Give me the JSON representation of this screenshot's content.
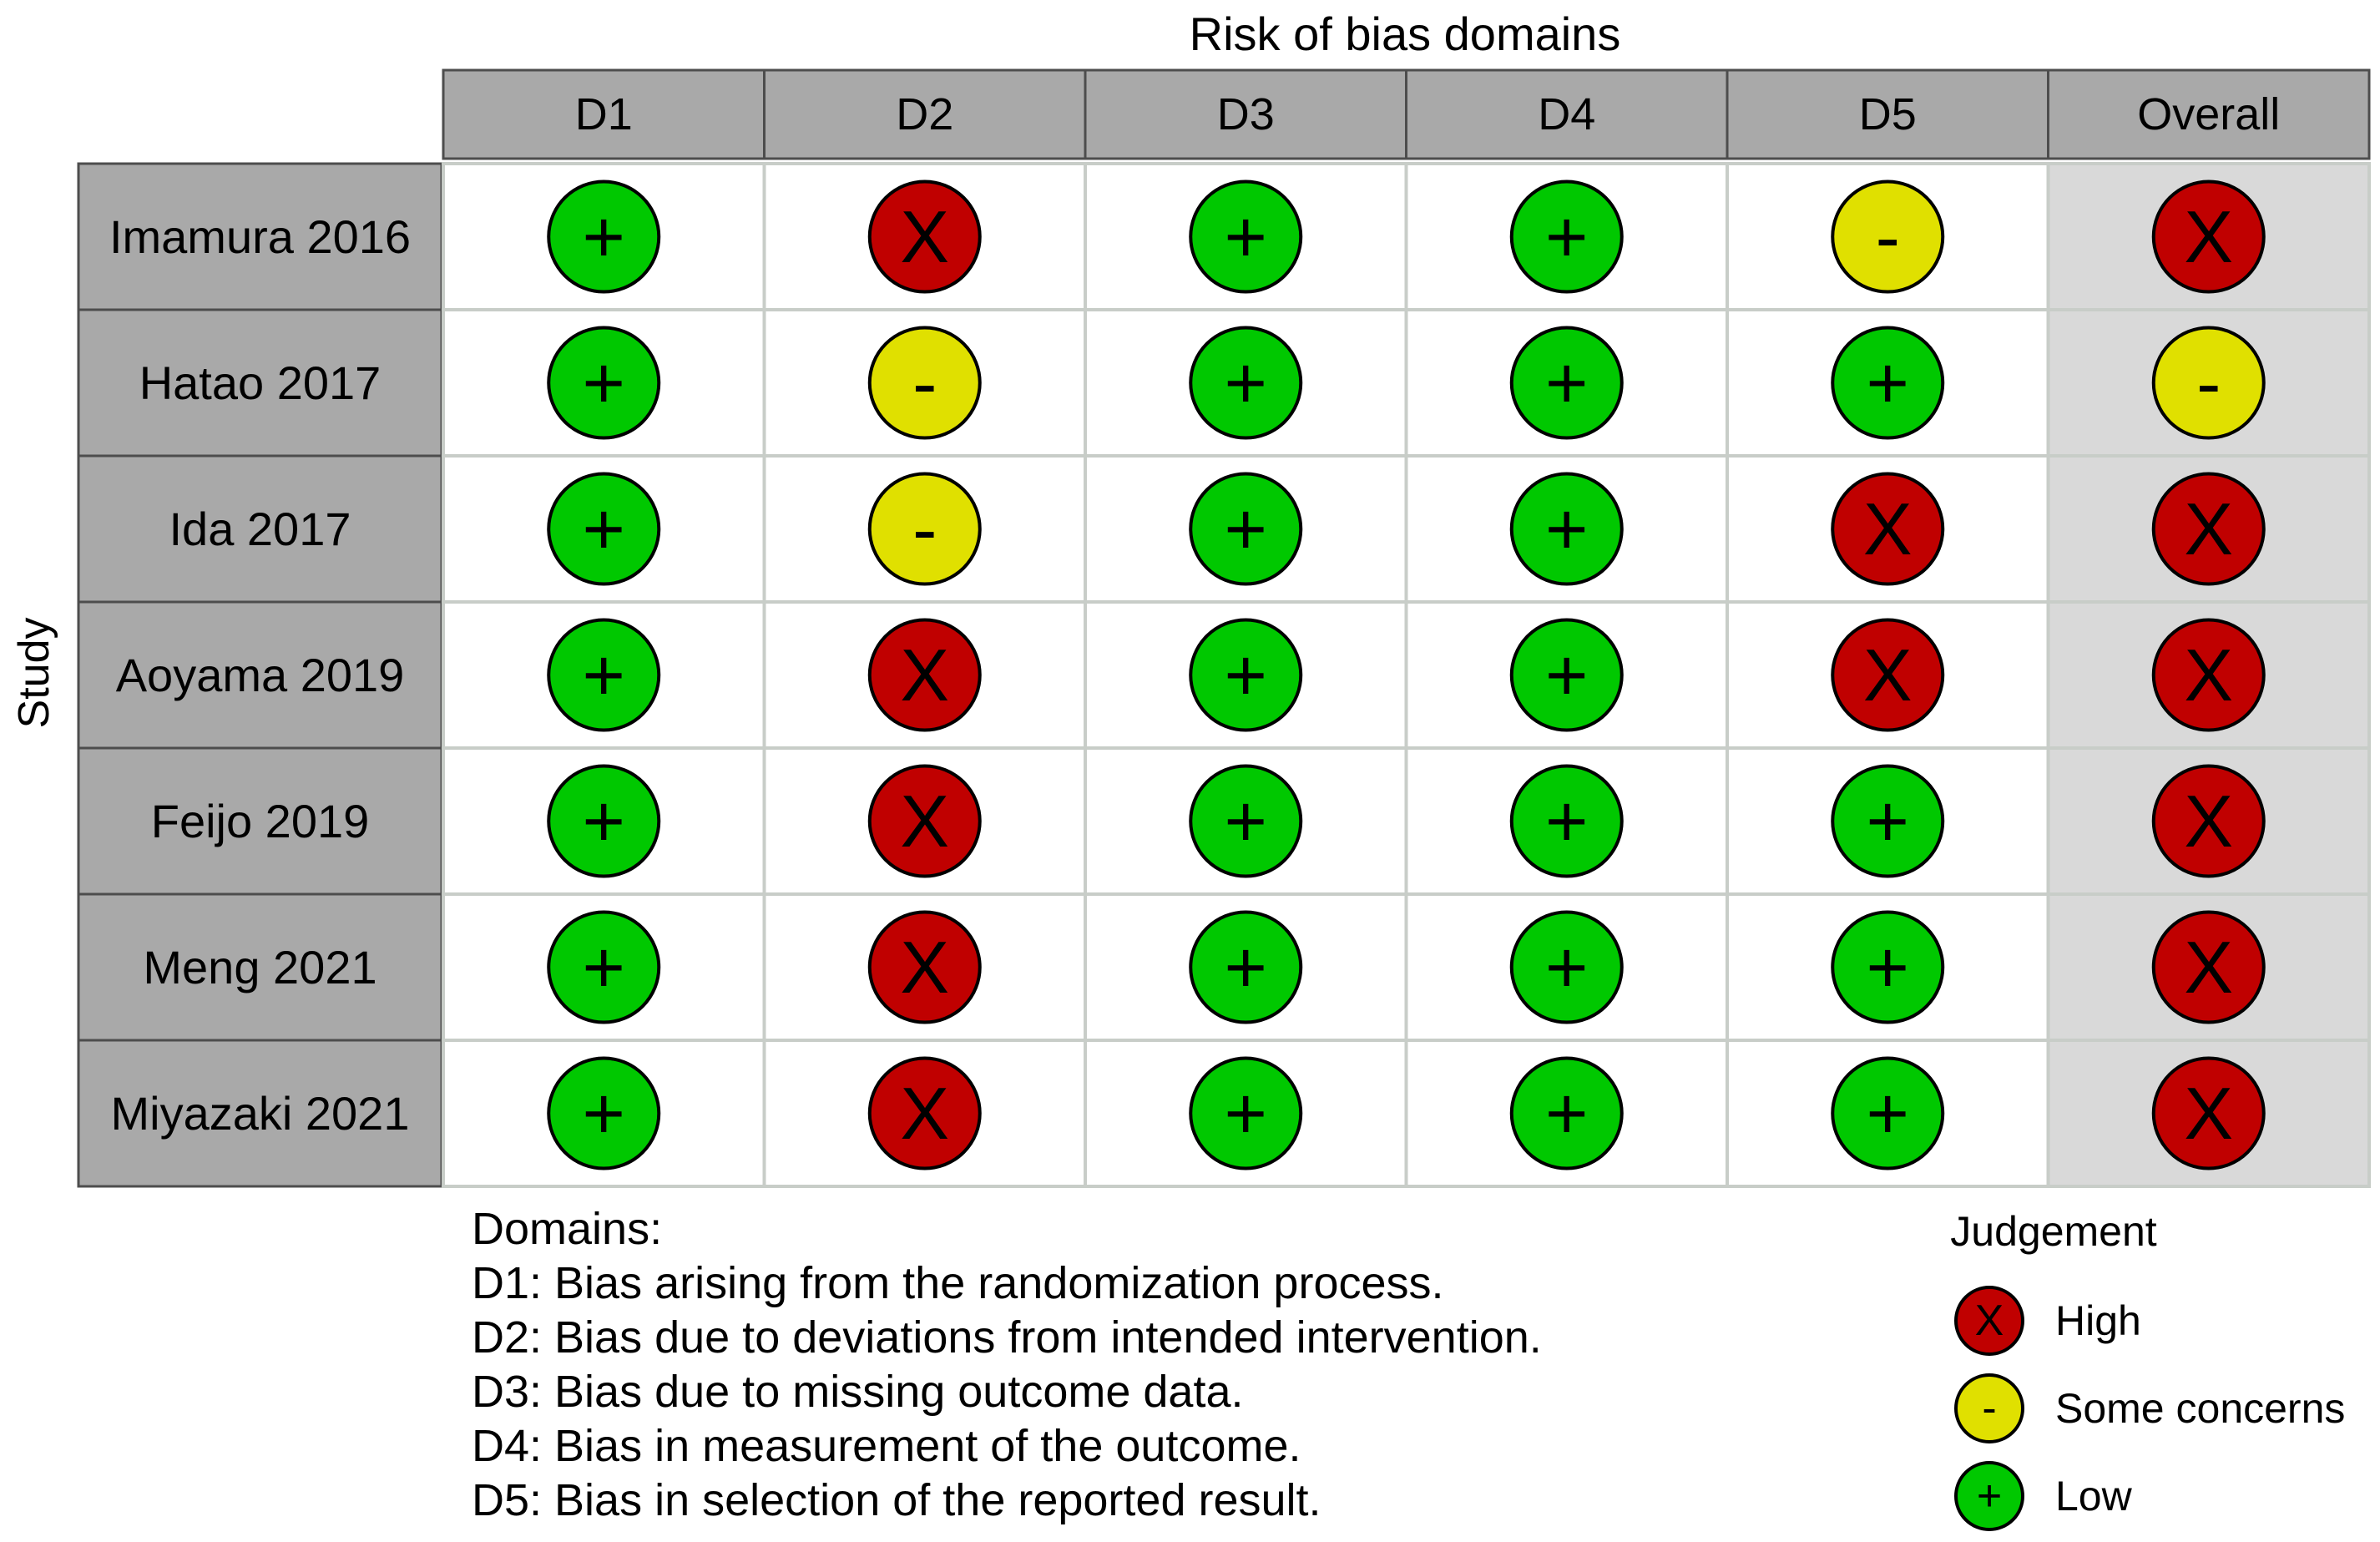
{
  "chart_data": {
    "type": "table",
    "title": "Risk of bias domains",
    "ylabel": "Study",
    "columns": [
      "D1",
      "D2",
      "D3",
      "D4",
      "D5",
      "Overall"
    ],
    "studies": [
      "Imamura 2016",
      "Hatao 2017",
      "Ida 2017",
      "Aoyama 2019",
      "Feijo 2019",
      "Meng 2021",
      "Miyazaki 2021"
    ],
    "judgements": [
      [
        "low",
        "high",
        "low",
        "low",
        "some",
        "high"
      ],
      [
        "low",
        "some",
        "low",
        "low",
        "low",
        "some"
      ],
      [
        "low",
        "some",
        "low",
        "low",
        "high",
        "high"
      ],
      [
        "low",
        "high",
        "low",
        "low",
        "high",
        "high"
      ],
      [
        "low",
        "high",
        "low",
        "low",
        "low",
        "high"
      ],
      [
        "low",
        "high",
        "low",
        "low",
        "low",
        "high"
      ],
      [
        "low",
        "high",
        "low",
        "low",
        "low",
        "high"
      ]
    ],
    "judgement_styles": {
      "high": {
        "symbol": "X",
        "color": "#c00000"
      },
      "some": {
        "symbol": "-",
        "color": "#e0e000"
      },
      "low": {
        "symbol": "+",
        "color": "#00c800"
      }
    },
    "domains_title": "Domains:",
    "domains": [
      "D1: Bias arising from the randomization process.",
      "D2: Bias due to deviations from intended intervention.",
      "D3: Bias due to missing outcome data.",
      "D4: Bias in measurement of the outcome.",
      "D5: Bias in selection of the reported result."
    ],
    "legend_title": "Judgement",
    "legend": [
      {
        "key": "high",
        "label": "High"
      },
      {
        "key": "some",
        "label": "Some concerns"
      },
      {
        "key": "low",
        "label": "Low"
      }
    ]
  }
}
